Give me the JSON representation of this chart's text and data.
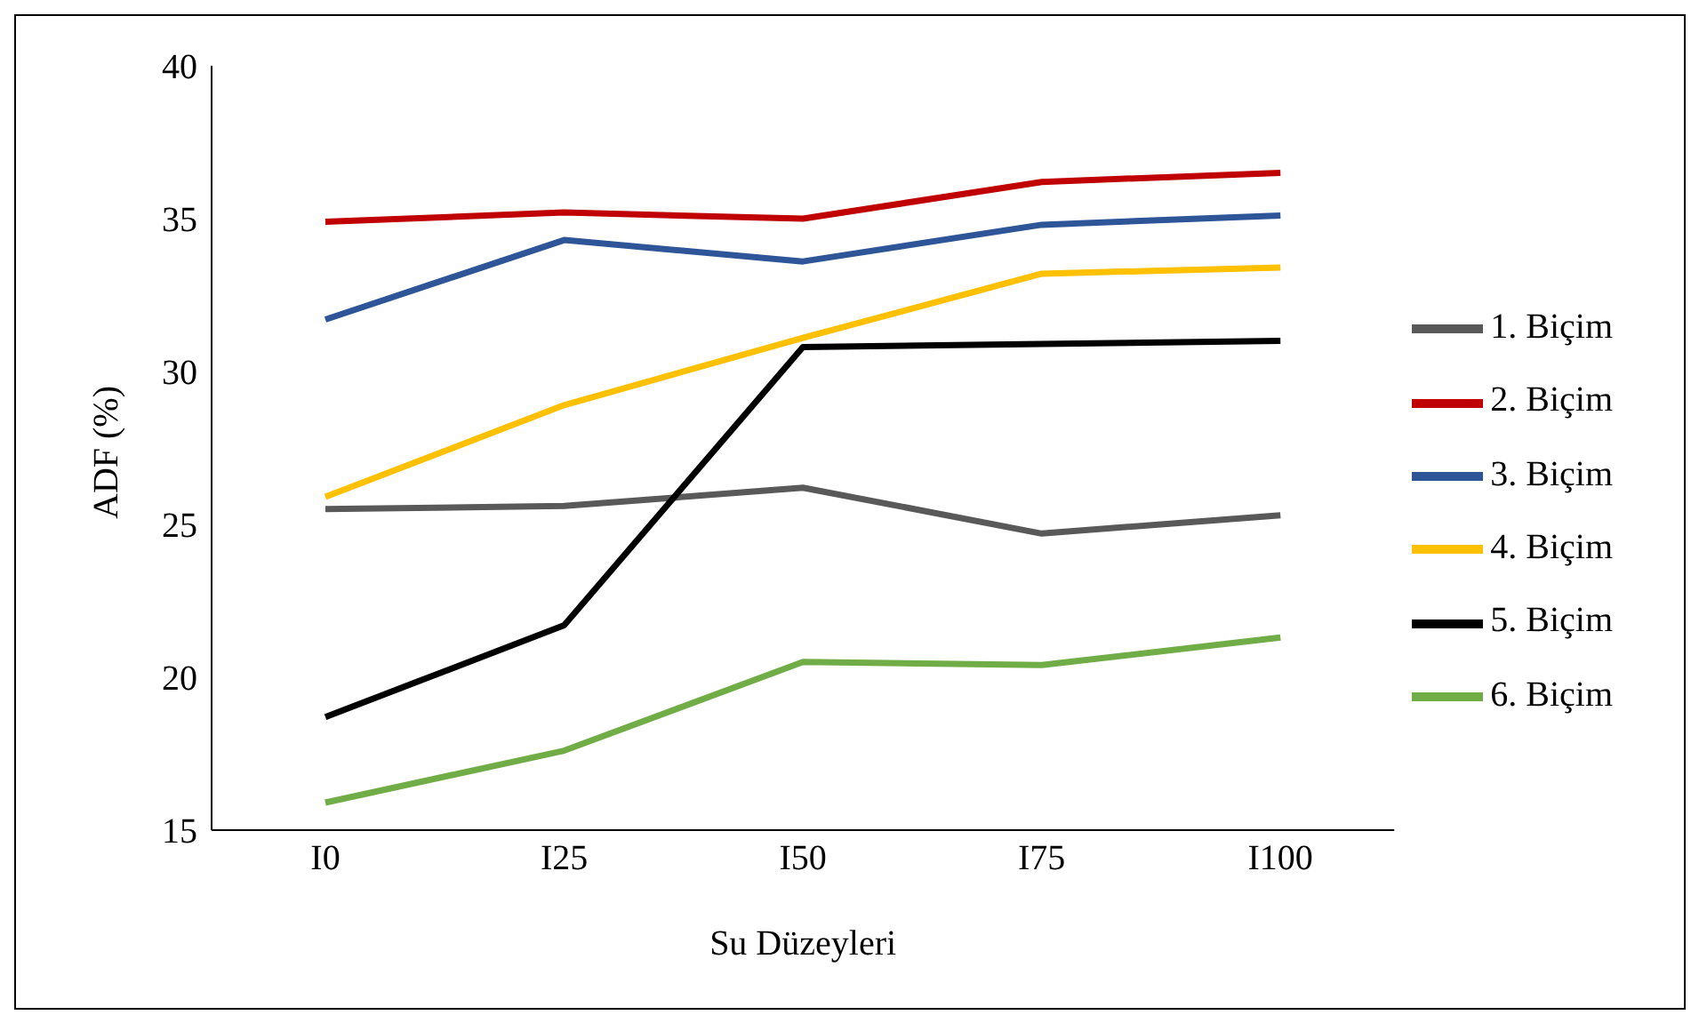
{
  "chart_data": {
    "type": "line",
    "xlabel": "Su Düzeyleri",
    "ylabel": "ADF (%)",
    "categories": [
      "I0",
      "I25",
      "I50",
      "I75",
      "I100"
    ],
    "ylim": [
      15,
      40
    ],
    "yticks": [
      15,
      20,
      25,
      30,
      35,
      40
    ],
    "legend": "right",
    "marker": "none",
    "series": [
      {
        "name": "1. Biçim",
        "color": "#595959",
        "values": [
          25.5,
          25.6,
          26.2,
          24.7,
          25.3
        ]
      },
      {
        "name": "2. Biçim",
        "color": "#c00000",
        "values": [
          34.9,
          35.2,
          35.0,
          36.2,
          36.5
        ]
      },
      {
        "name": "3. Biçim",
        "color": "#2e5597",
        "values": [
          31.7,
          34.3,
          33.6,
          34.8,
          35.1
        ]
      },
      {
        "name": "4. Biçim",
        "color": "#ffc000",
        "values": [
          25.9,
          28.9,
          31.1,
          33.2,
          33.4
        ]
      },
      {
        "name": "5. Biçim",
        "color": "#000000",
        "values": [
          18.7,
          21.7,
          30.8,
          30.9,
          31.0
        ]
      },
      {
        "name": "6. Biçim",
        "color": "#70ad47",
        "values": [
          15.9,
          17.6,
          20.5,
          20.4,
          21.3
        ]
      }
    ]
  }
}
